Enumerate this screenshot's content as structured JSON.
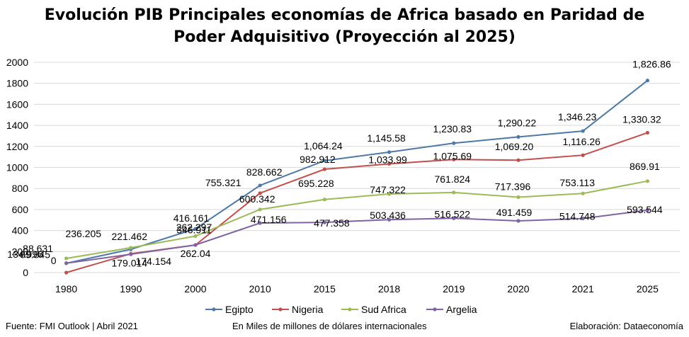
{
  "title_line1": "Evolución PIB Principales economías de Africa basado en Paridad de",
  "title_line2": "Poder Adquisitivo (Proyección al 2025)",
  "footer": {
    "source": "Fuente: FMI Outlook | Abril 2021",
    "units": "En Miles de millones de dólares internacionales",
    "credit": "Elaboración: Dataeconomía"
  },
  "chart_data": {
    "type": "line",
    "categories": [
      "1980",
      "1990",
      "2000",
      "2010",
      "2015",
      "2018",
      "2019",
      "2020",
      "2021",
      "2025"
    ],
    "ylim": [
      0,
      2000
    ],
    "yticks": [
      "0",
      "200",
      "400",
      "600",
      "800",
      "1000",
      "1200",
      "1400",
      "1600",
      "1800",
      "2000"
    ],
    "grid": true,
    "legend_position": "bottom",
    "series": [
      {
        "name": "Egipto",
        "color": "#4e79a7",
        "values": [
          88.631,
          221.462,
          416.161,
          828.662,
          1064.24,
          1145.58,
          1230.83,
          1290.22,
          1346.23,
          1826.86
        ],
        "labels": [
          "88.631",
          "221.462",
          "416.161",
          "828.662",
          "1,064.24",
          "1,145.58",
          "1,230.83",
          "1,290.22",
          "1,346.23",
          "1,826.86"
        ]
      },
      {
        "name": "Nigeria",
        "color": "#c0504d",
        "values": [
          0,
          179.014,
          262.04,
          755.321,
          982.912,
          1033.99,
          1075.69,
          1069.2,
          1116.26,
          1330.32
        ],
        "labels": [
          "0",
          "179.014",
          "262.04",
          "755.321",
          "982.912",
          "1,033.99",
          "1,075.69",
          "1,069.20",
          "1,116.26",
          "1,330.32"
        ]
      },
      {
        "name": "Sud Africa",
        "color": "#9bbb59",
        "values": [
          134.996,
          236.205,
          346.911,
          600.342,
          695.228,
          747.322,
          761.824,
          717.396,
          753.113,
          869.91
        ],
        "labels": [
          "134.996",
          "236.205",
          "346.911",
          "600.342",
          "695.228",
          "747.322",
          "761.824",
          "717.396",
          "753.113",
          "869.91"
        ]
      },
      {
        "name": "Argelia",
        "color": "#8064a2",
        "values": [
          89.845,
          174.154,
          262.297,
          471.156,
          477.358,
          503.436,
          516.522,
          491.459,
          514.748,
          593.544
        ],
        "labels": [
          "89.845",
          "174.154",
          "262.297",
          "471.156",
          "477.358",
          "503.436",
          "516.522",
          "491.459",
          "514.748",
          "593.544"
        ]
      }
    ]
  }
}
